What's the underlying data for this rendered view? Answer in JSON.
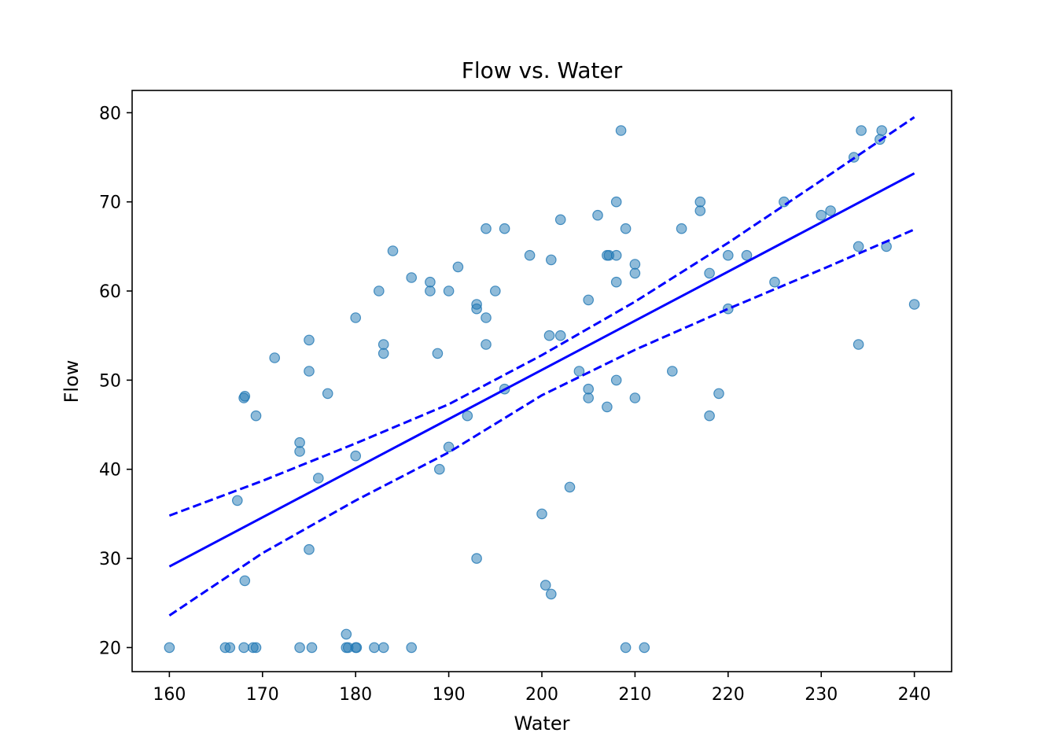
{
  "chart_data": {
    "type": "scatter",
    "title": "Flow vs. Water",
    "xlabel": "Water",
    "ylabel": "Flow",
    "xlim": [
      156,
      244
    ],
    "ylim": [
      17.3,
      82.5
    ],
    "xticks": [
      160,
      170,
      180,
      190,
      200,
      210,
      220,
      230,
      240
    ],
    "yticks": [
      20,
      30,
      40,
      50,
      60,
      70,
      80
    ],
    "grid": false,
    "legend": "none",
    "colors": {
      "points": "#1f77b4",
      "fit_line": "#0000ff",
      "confidence_band": "#0000ff",
      "axes": "#000000"
    },
    "points": [
      [
        160,
        20
      ],
      [
        166,
        20
      ],
      [
        166.5,
        20
      ],
      [
        168,
        20
      ],
      [
        169,
        20
      ],
      [
        169.3,
        20
      ],
      [
        174,
        20
      ],
      [
        175.3,
        20
      ],
      [
        179,
        20
      ],
      [
        179.2,
        20
      ],
      [
        180,
        20
      ],
      [
        180.1,
        20
      ],
      [
        182,
        20
      ],
      [
        183,
        20
      ],
      [
        186,
        20
      ],
      [
        209,
        20
      ],
      [
        211,
        20
      ],
      [
        179,
        21.5
      ],
      [
        201,
        26
      ],
      [
        200.4,
        27
      ],
      [
        168.1,
        27.5
      ],
      [
        193,
        30
      ],
      [
        175,
        31
      ],
      [
        200,
        35
      ],
      [
        167.3,
        36.5
      ],
      [
        203,
        38
      ],
      [
        176,
        39
      ],
      [
        189,
        40
      ],
      [
        180,
        41.5
      ],
      [
        174,
        42
      ],
      [
        190,
        42.5
      ],
      [
        174,
        43
      ],
      [
        169.3,
        46
      ],
      [
        192,
        46
      ],
      [
        218,
        46
      ],
      [
        207,
        47
      ],
      [
        168,
        48
      ],
      [
        168.1,
        48.2
      ],
      [
        205,
        48
      ],
      [
        210,
        48
      ],
      [
        177,
        48.5
      ],
      [
        219,
        48.5
      ],
      [
        196,
        49
      ],
      [
        205,
        49
      ],
      [
        208,
        50
      ],
      [
        175,
        51
      ],
      [
        204,
        51
      ],
      [
        214,
        51
      ],
      [
        171.3,
        52.5
      ],
      [
        183,
        53
      ],
      [
        188.8,
        53
      ],
      [
        183,
        54
      ],
      [
        194,
        54
      ],
      [
        234,
        54
      ],
      [
        175,
        54.5
      ],
      [
        200.8,
        55
      ],
      [
        202,
        55
      ],
      [
        180,
        57
      ],
      [
        194,
        57
      ],
      [
        193,
        58
      ],
      [
        220,
        58
      ],
      [
        193,
        58.5
      ],
      [
        240,
        58.5
      ],
      [
        205,
        59
      ],
      [
        182.5,
        60
      ],
      [
        188,
        60
      ],
      [
        190,
        60
      ],
      [
        195,
        60
      ],
      [
        188,
        61
      ],
      [
        208,
        61
      ],
      [
        225,
        61
      ],
      [
        186,
        61.5
      ],
      [
        210,
        62
      ],
      [
        218,
        62
      ],
      [
        191,
        62.7
      ],
      [
        210,
        63
      ],
      [
        201,
        63.5
      ],
      [
        198.7,
        64
      ],
      [
        207,
        64
      ],
      [
        207.2,
        64
      ],
      [
        208,
        64
      ],
      [
        220,
        64
      ],
      [
        222,
        64
      ],
      [
        184,
        64.5
      ],
      [
        234,
        65
      ],
      [
        237,
        65
      ],
      [
        194,
        67
      ],
      [
        196,
        67
      ],
      [
        209,
        67
      ],
      [
        215,
        67
      ],
      [
        202,
        68
      ],
      [
        206,
        68.5
      ],
      [
        230,
        68.5
      ],
      [
        217,
        69
      ],
      [
        231,
        69
      ],
      [
        208,
        70
      ],
      [
        217,
        70
      ],
      [
        226,
        70
      ],
      [
        233.5,
        75
      ],
      [
        236.3,
        77
      ],
      [
        234.3,
        78
      ],
      [
        236.5,
        78
      ],
      [
        208.5,
        78
      ]
    ],
    "fit_line": {
      "x": [
        160,
        240
      ],
      "y": [
        29.1,
        73.2
      ]
    },
    "confidence_upper": {
      "x": [
        160,
        170,
        180,
        190,
        200,
        210,
        220,
        230,
        240
      ],
      "y": [
        34.8,
        38.7,
        42.9,
        47.3,
        52.8,
        58.8,
        65.4,
        72.4,
        79.5
      ]
    },
    "confidence_lower": {
      "x": [
        160,
        170,
        180,
        190,
        200,
        210,
        220,
        230,
        240
      ],
      "y": [
        23.6,
        30.6,
        36.5,
        41.9,
        48.3,
        53.4,
        58.0,
        62.4,
        66.9
      ]
    }
  }
}
